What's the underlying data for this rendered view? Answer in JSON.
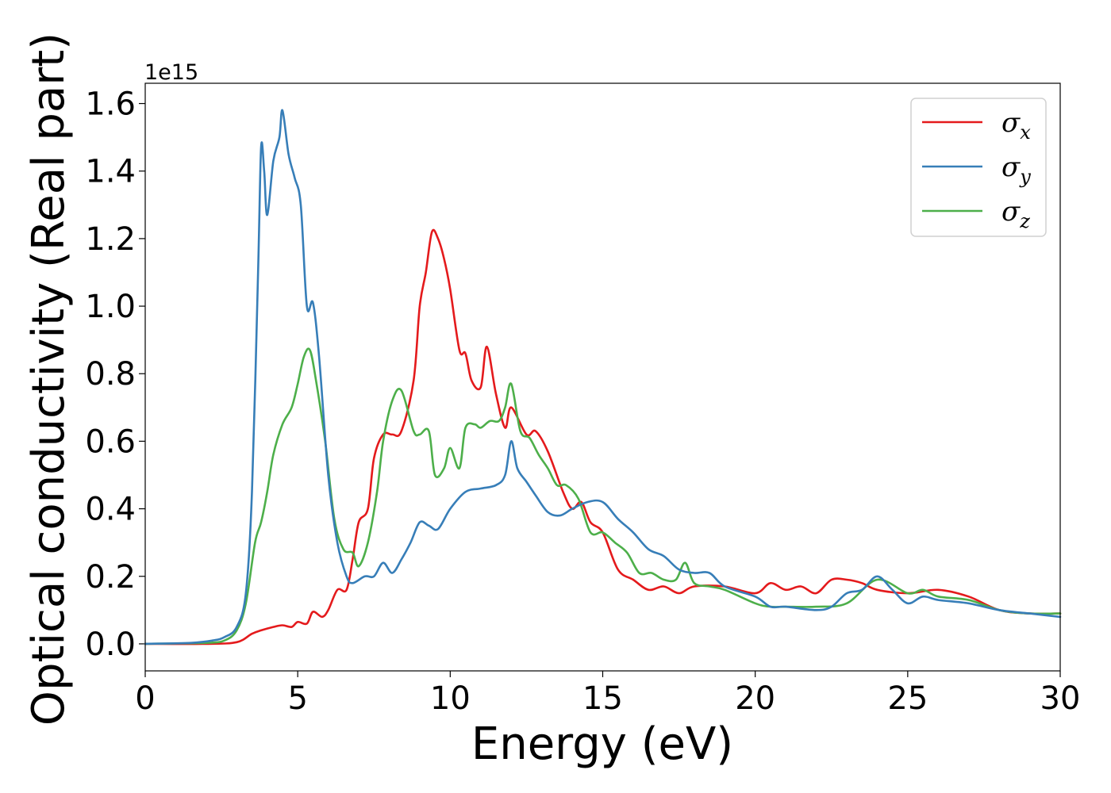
{
  "chart_data": {
    "type": "line",
    "xlabel": "Energy (eV)",
    "ylabel": "Optical conductivity (Real part)",
    "y_offset_label": "1e15",
    "xlim": [
      0,
      30
    ],
    "ylim": [
      -0.08,
      1.66
    ],
    "x_ticks": [
      0,
      5,
      10,
      15,
      20,
      25,
      30
    ],
    "x_tick_labels": [
      "0",
      "5",
      "10",
      "15",
      "20",
      "25",
      "30"
    ],
    "y_ticks": [
      0.0,
      0.2,
      0.4,
      0.6,
      0.8,
      1.0,
      1.2,
      1.4,
      1.6
    ],
    "y_tick_labels": [
      "0.0",
      "0.2",
      "0.4",
      "0.6",
      "0.8",
      "1.0",
      "1.2",
      "1.4",
      "1.6"
    ],
    "grid": false,
    "legend_position": "top-right",
    "series": [
      {
        "name": "σx",
        "legend_main": "σ",
        "legend_sub": "x",
        "color": "#e41a1c",
        "points": [
          [
            0,
            0
          ],
          [
            2,
            0
          ],
          [
            3,
            0.005
          ],
          [
            3.5,
            0.03
          ],
          [
            3.8,
            0.04
          ],
          [
            4.2,
            0.05
          ],
          [
            4.5,
            0.055
          ],
          [
            4.8,
            0.05
          ],
          [
            5.0,
            0.065
          ],
          [
            5.3,
            0.06
          ],
          [
            5.5,
            0.095
          ],
          [
            5.8,
            0.08
          ],
          [
            6.0,
            0.1
          ],
          [
            6.3,
            0.16
          ],
          [
            6.6,
            0.16
          ],
          [
            6.8,
            0.25
          ],
          [
            7.0,
            0.36
          ],
          [
            7.3,
            0.4
          ],
          [
            7.5,
            0.55
          ],
          [
            7.8,
            0.62
          ],
          [
            8.1,
            0.62
          ],
          [
            8.4,
            0.63
          ],
          [
            8.8,
            0.78
          ],
          [
            9.0,
            1.0
          ],
          [
            9.2,
            1.1
          ],
          [
            9.4,
            1.22
          ],
          [
            9.6,
            1.2
          ],
          [
            9.8,
            1.14
          ],
          [
            10.0,
            1.05
          ],
          [
            10.3,
            0.87
          ],
          [
            10.5,
            0.86
          ],
          [
            10.7,
            0.78
          ],
          [
            11.0,
            0.76
          ],
          [
            11.2,
            0.88
          ],
          [
            11.5,
            0.74
          ],
          [
            11.8,
            0.64
          ],
          [
            12.0,
            0.7
          ],
          [
            12.5,
            0.62
          ],
          [
            12.8,
            0.63
          ],
          [
            13.2,
            0.57
          ],
          [
            13.7,
            0.45
          ],
          [
            14.0,
            0.4
          ],
          [
            14.3,
            0.42
          ],
          [
            14.6,
            0.36
          ],
          [
            15.0,
            0.33
          ],
          [
            15.5,
            0.22
          ],
          [
            16.0,
            0.19
          ],
          [
            16.5,
            0.16
          ],
          [
            17.0,
            0.17
          ],
          [
            17.5,
            0.15
          ],
          [
            18.0,
            0.17
          ],
          [
            19.0,
            0.17
          ],
          [
            20.0,
            0.15
          ],
          [
            20.5,
            0.18
          ],
          [
            21.0,
            0.16
          ],
          [
            21.5,
            0.17
          ],
          [
            22.0,
            0.15
          ],
          [
            22.5,
            0.19
          ],
          [
            23.0,
            0.19
          ],
          [
            23.5,
            0.18
          ],
          [
            24.0,
            0.16
          ],
          [
            25.0,
            0.15
          ],
          [
            26.0,
            0.16
          ],
          [
            27.0,
            0.14
          ],
          [
            28.0,
            0.1
          ],
          [
            29.0,
            0.09
          ],
          [
            30.0,
            0.09
          ]
        ]
      },
      {
        "name": "σy",
        "legend_main": "σ",
        "legend_sub": "y",
        "color": "#377eb8",
        "points": [
          [
            0,
            0
          ],
          [
            1.5,
            0.003
          ],
          [
            2.2,
            0.01
          ],
          [
            2.6,
            0.02
          ],
          [
            3.0,
            0.05
          ],
          [
            3.3,
            0.15
          ],
          [
            3.5,
            0.45
          ],
          [
            3.7,
            1.1
          ],
          [
            3.8,
            1.47
          ],
          [
            3.9,
            1.4
          ],
          [
            4.0,
            1.27
          ],
          [
            4.2,
            1.43
          ],
          [
            4.4,
            1.5
          ],
          [
            4.5,
            1.58
          ],
          [
            4.7,
            1.45
          ],
          [
            4.9,
            1.38
          ],
          [
            5.1,
            1.3
          ],
          [
            5.3,
            1.0
          ],
          [
            5.5,
            1.01
          ],
          [
            5.7,
            0.85
          ],
          [
            6.0,
            0.5
          ],
          [
            6.3,
            0.3
          ],
          [
            6.6,
            0.2
          ],
          [
            6.8,
            0.18
          ],
          [
            7.2,
            0.2
          ],
          [
            7.5,
            0.2
          ],
          [
            7.8,
            0.24
          ],
          [
            8.1,
            0.21
          ],
          [
            8.4,
            0.25
          ],
          [
            8.7,
            0.3
          ],
          [
            9.0,
            0.36
          ],
          [
            9.3,
            0.35
          ],
          [
            9.6,
            0.34
          ],
          [
            10.0,
            0.4
          ],
          [
            10.5,
            0.45
          ],
          [
            11.0,
            0.46
          ],
          [
            11.5,
            0.47
          ],
          [
            11.8,
            0.5
          ],
          [
            12.0,
            0.6
          ],
          [
            12.2,
            0.52
          ],
          [
            12.5,
            0.48
          ],
          [
            12.8,
            0.44
          ],
          [
            13.2,
            0.39
          ],
          [
            13.6,
            0.38
          ],
          [
            14.0,
            0.4
          ],
          [
            14.5,
            0.42
          ],
          [
            15.0,
            0.42
          ],
          [
            15.5,
            0.37
          ],
          [
            16.0,
            0.33
          ],
          [
            16.5,
            0.28
          ],
          [
            17.0,
            0.26
          ],
          [
            17.5,
            0.22
          ],
          [
            18.0,
            0.21
          ],
          [
            18.5,
            0.21
          ],
          [
            19.0,
            0.17
          ],
          [
            20.0,
            0.14
          ],
          [
            20.5,
            0.11
          ],
          [
            21.0,
            0.11
          ],
          [
            22.0,
            0.1
          ],
          [
            22.5,
            0.11
          ],
          [
            23.0,
            0.15
          ],
          [
            23.5,
            0.16
          ],
          [
            24.0,
            0.2
          ],
          [
            24.5,
            0.16
          ],
          [
            25.0,
            0.12
          ],
          [
            25.5,
            0.14
          ],
          [
            26.0,
            0.13
          ],
          [
            27.0,
            0.12
          ],
          [
            28.0,
            0.1
          ],
          [
            29.0,
            0.09
          ],
          [
            30.0,
            0.08
          ]
        ]
      },
      {
        "name": "σz",
        "legend_main": "σ",
        "legend_sub": "z",
        "color": "#4daf4a",
        "points": [
          [
            0,
            0
          ],
          [
            2,
            0.003
          ],
          [
            2.6,
            0.01
          ],
          [
            3.0,
            0.04
          ],
          [
            3.3,
            0.12
          ],
          [
            3.6,
            0.3
          ],
          [
            3.8,
            0.36
          ],
          [
            4.0,
            0.45
          ],
          [
            4.2,
            0.56
          ],
          [
            4.5,
            0.65
          ],
          [
            4.8,
            0.7
          ],
          [
            5.0,
            0.77
          ],
          [
            5.2,
            0.85
          ],
          [
            5.4,
            0.87
          ],
          [
            5.6,
            0.78
          ],
          [
            5.9,
            0.6
          ],
          [
            6.2,
            0.37
          ],
          [
            6.5,
            0.28
          ],
          [
            6.8,
            0.27
          ],
          [
            7.0,
            0.23
          ],
          [
            7.3,
            0.3
          ],
          [
            7.6,
            0.45
          ],
          [
            7.8,
            0.6
          ],
          [
            8.1,
            0.72
          ],
          [
            8.4,
            0.75
          ],
          [
            8.8,
            0.63
          ],
          [
            9.0,
            0.62
          ],
          [
            9.3,
            0.63
          ],
          [
            9.5,
            0.5
          ],
          [
            9.8,
            0.52
          ],
          [
            10.0,
            0.58
          ],
          [
            10.3,
            0.52
          ],
          [
            10.5,
            0.64
          ],
          [
            10.8,
            0.65
          ],
          [
            11.0,
            0.64
          ],
          [
            11.3,
            0.66
          ],
          [
            11.6,
            0.66
          ],
          [
            11.8,
            0.7
          ],
          [
            12.0,
            0.77
          ],
          [
            12.3,
            0.63
          ],
          [
            12.6,
            0.61
          ],
          [
            12.9,
            0.56
          ],
          [
            13.2,
            0.52
          ],
          [
            13.5,
            0.47
          ],
          [
            13.8,
            0.47
          ],
          [
            14.2,
            0.43
          ],
          [
            14.6,
            0.33
          ],
          [
            15.0,
            0.33
          ],
          [
            15.4,
            0.3
          ],
          [
            15.8,
            0.27
          ],
          [
            16.2,
            0.21
          ],
          [
            16.6,
            0.21
          ],
          [
            17.0,
            0.19
          ],
          [
            17.4,
            0.19
          ],
          [
            17.7,
            0.24
          ],
          [
            18.0,
            0.18
          ],
          [
            18.5,
            0.17
          ],
          [
            19.0,
            0.16
          ],
          [
            20.0,
            0.12
          ],
          [
            20.5,
            0.11
          ],
          [
            21.0,
            0.11
          ],
          [
            22.0,
            0.11
          ],
          [
            23.0,
            0.12
          ],
          [
            24.0,
            0.19
          ],
          [
            25.0,
            0.15
          ],
          [
            25.5,
            0.16
          ],
          [
            26.0,
            0.14
          ],
          [
            27.0,
            0.13
          ],
          [
            28.0,
            0.1
          ],
          [
            29.0,
            0.09
          ],
          [
            30.0,
            0.09
          ]
        ]
      }
    ]
  }
}
